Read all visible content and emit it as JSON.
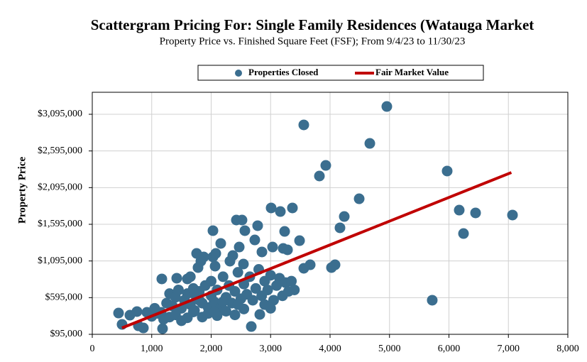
{
  "chart_data": {
    "type": "scatter",
    "title": "Scattergram Pricing For: Single Family Residences (Watauga Market",
    "subtitle": "Property Price vs. Finished Square Feet (FSF); From 9/4/23 to 11/30/23",
    "ylabel": "Property Price",
    "xlim": [
      0,
      8000
    ],
    "ylim": [
      95000,
      3395000
    ],
    "xticks": [
      0,
      {
        "value": 1000,
        "label": "1,000"
      },
      {
        "value": 2000,
        "label": "2,000"
      },
      {
        "value": 3000,
        "label": "3,000"
      },
      {
        "value": 4000,
        "label": "4,000"
      },
      {
        "value": 5000,
        "label": "5,000"
      },
      {
        "value": 6000,
        "label": "6,000"
      },
      {
        "value": 7000,
        "label": "7,000"
      },
      {
        "value": 8000,
        "label": "8,000"
      }
    ],
    "yticks": [
      {
        "value": 95000,
        "label": "$95,000"
      },
      {
        "value": 595000,
        "label": "$595,000"
      },
      {
        "value": 1095000,
        "label": "$1,095,000"
      },
      {
        "value": 1595000,
        "label": "$1,595,000"
      },
      {
        "value": 2095000,
        "label": "$2,095,000"
      },
      {
        "value": 2595000,
        "label": "$2,595,000"
      },
      {
        "value": 3095000,
        "label": "$3,095,000"
      }
    ],
    "grid": true,
    "legend": "top",
    "series": [
      {
        "name": "Properties Closed",
        "type": "scatter",
        "color": "#3b6e8f",
        "x": [
          4955,
          3558,
          4669,
          3928,
          3821,
          5970,
          4490,
          6173,
          6448,
          7069,
          6245,
          4239,
          4167,
          3009,
          3367,
          3164,
          5719,
          4084,
          4024,
          3666,
          3558,
          3487,
          3236,
          3284,
          3212,
          2424,
          2519,
          2782,
          2567,
          2030,
          2161,
          2472,
          2734,
          2854,
          3033,
          2364,
          2316,
          2030,
          2078,
          1875,
          1755,
          1779,
          1827,
          2066,
          2543,
          2675,
          2818,
          1170,
          1421,
          1600,
          442,
          501,
          752,
          633,
          860,
          776,
          919,
          1182,
          1158,
          1250,
          1300,
          1350,
          1400,
          1450,
          1500,
          1550,
          1600,
          1650,
          1700,
          1720,
          1750,
          1800,
          1850,
          1900,
          1950,
          2000,
          2000,
          2050,
          2100,
          2150,
          2200,
          2250,
          2300,
          2350,
          2400,
          2450,
          2500,
          2550,
          2600,
          2650,
          2700,
          2750,
          2800,
          2850,
          2900,
          2950,
          3000,
          3050,
          3100,
          3150,
          3200,
          3250,
          3300,
          3350,
          3400,
          1100,
          1200,
          1300,
          1400,
          1500,
          1600,
          1700,
          1850,
          1950,
          2100,
          2250,
          2400,
          2550,
          1000,
          1050,
          1650,
          2900,
          3000,
          2450,
          1800,
          2050,
          2200
        ],
        "values": [
          3201000,
          2950000,
          2698000,
          2398000,
          2253000,
          2321000,
          1943000,
          1788000,
          1750000,
          1721000,
          1469000,
          1701000,
          1547000,
          1818000,
          1818000,
          1769000,
          560000,
          1043000,
          1005000,
          1043000,
          995000,
          1372000,
          1498000,
          1247000,
          1266000,
          1653000,
          1653000,
          1576000,
          1508000,
          1508000,
          1334000,
          1285000,
          1382000,
          1218000,
          1285000,
          1169000,
          1092000,
          1150000,
          1198000,
          1150000,
          1198000,
          1005000,
          1092000,
          1024000,
          1053000,
          201000,
          366000,
          850000,
          860000,
          850000,
          385000,
          230000,
          405000,
          356000,
          182000,
          211000,
          395000,
          172000,
          395000,
          520000,
          650000,
          480000,
          600000,
          700000,
          450000,
          560000,
          650000,
          500000,
          720000,
          420000,
          600000,
          680000,
          520000,
          760000,
          460000,
          620000,
          820000,
          540000,
          700000,
          450000,
          880000,
          600000,
          760000,
          520000,
          680000,
          940000,
          580000,
          780000,
          640000,
          880000,
          560000,
          720000,
          980000,
          620000,
          820000,
          700000,
          900000,
          560000,
          760000,
          860000,
          620000,
          800000,
          680000,
          820000,
          700000,
          380000,
          300000,
          330000,
          360000,
          280000,
          320000,
          400000,
          330000,
          380000,
          350000,
          410000,
          360000,
          440000,
          340000,
          450000,
          880000,
          500000,
          450000,
          500000,
          560000,
          400000,
          540000
        ]
      },
      {
        "name": "Fair Market Value",
        "type": "line",
        "color": "#c00000",
        "x": [
          500,
          7050
        ],
        "values": [
          182000,
          2301000
        ]
      }
    ]
  }
}
